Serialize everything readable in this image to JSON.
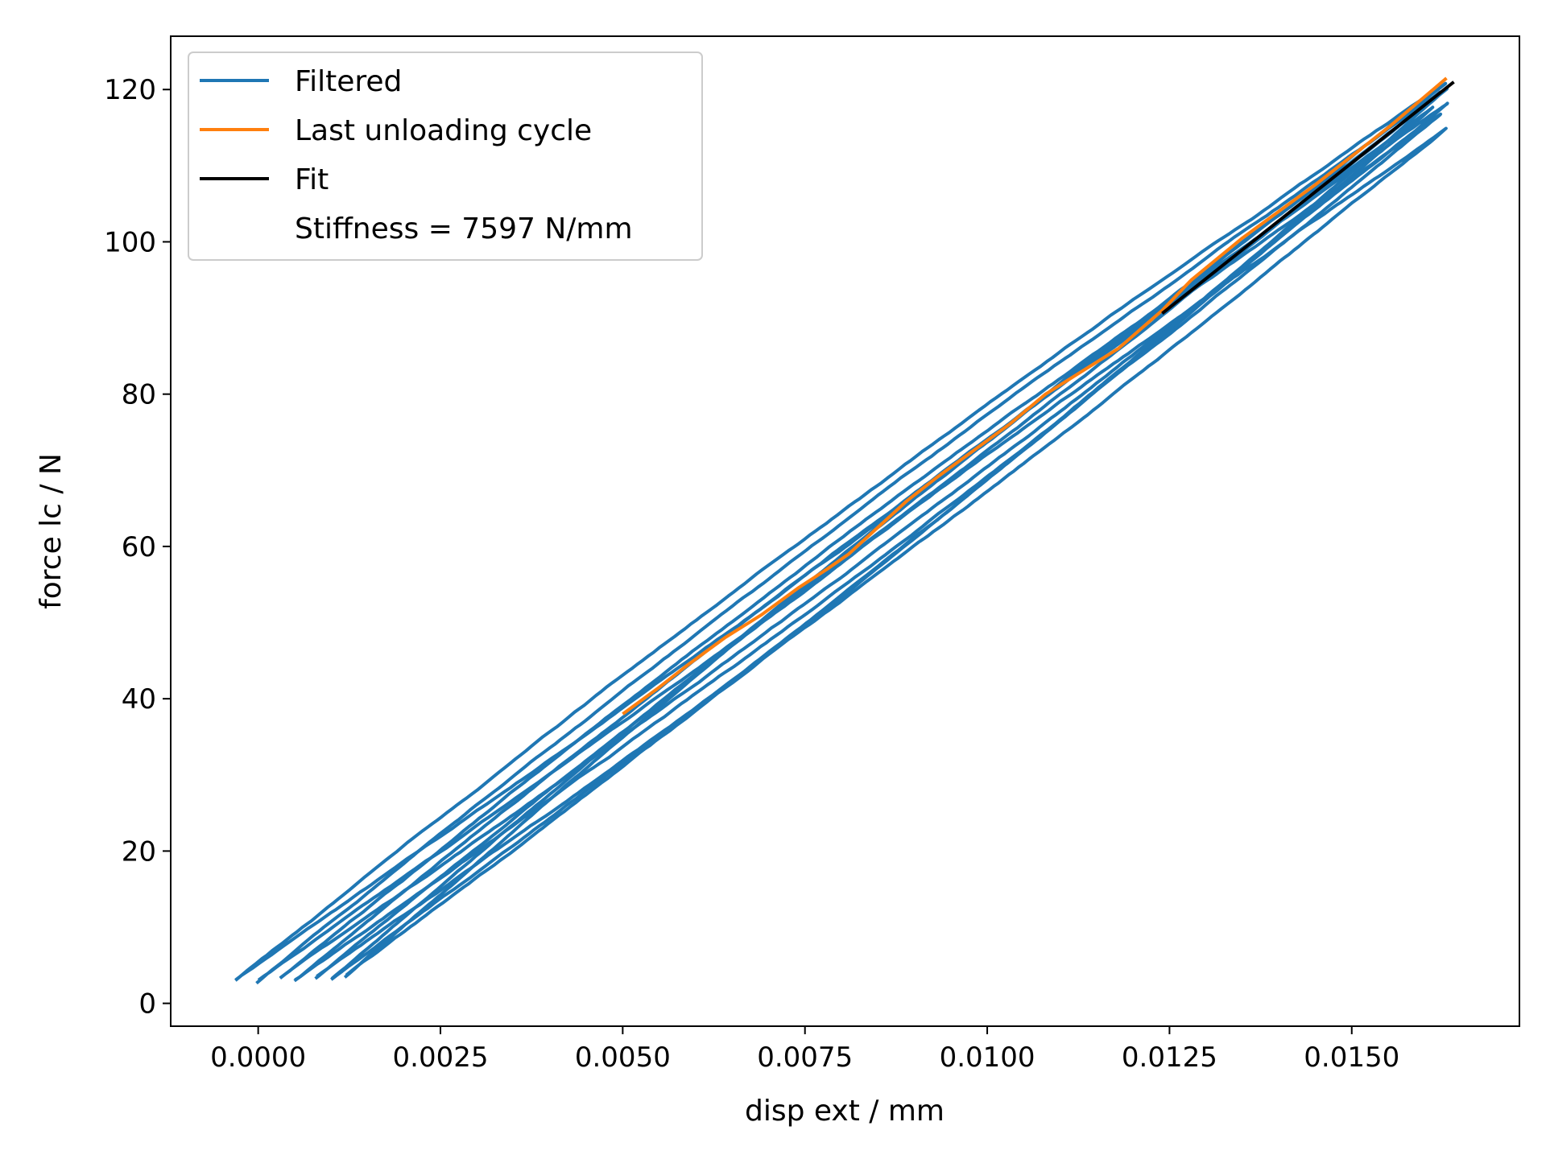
{
  "chart_data": {
    "type": "line",
    "title": "",
    "xlabel": "disp ext / mm",
    "ylabel": "force lc / N",
    "xlim": [
      -0.0012,
      0.0173
    ],
    "ylim": [
      -3,
      127
    ],
    "x_ticks": [
      0.0,
      0.0025,
      0.005,
      0.0075,
      0.01,
      0.0125,
      0.015
    ],
    "x_tick_labels": [
      "0.0000",
      "0.0025",
      "0.0050",
      "0.0075",
      "0.0100",
      "0.0125",
      "0.0150"
    ],
    "y_ticks": [
      0,
      20,
      40,
      60,
      80,
      100,
      120
    ],
    "y_tick_labels": [
      "0",
      "20",
      "40",
      "60",
      "80",
      "100",
      "120"
    ],
    "grid": false,
    "legend_position": "top-left",
    "series": [
      {
        "name": "Filtered",
        "color": "#1f77b4",
        "kind": "cycles",
        "cycles": [
          {
            "min": [
              -0.0003,
              3.2
            ],
            "max": [
              0.0163,
              121.0
            ]
          },
          {
            "min": [
              0.0,
              3.0
            ],
            "max": [
              0.0162,
              119.5
            ]
          },
          {
            "min": [
              0.0003,
              3.3
            ],
            "max": [
              0.0163,
              118.0
            ]
          },
          {
            "min": [
              0.0005,
              3.0
            ],
            "max": [
              0.0162,
              116.5
            ]
          },
          {
            "min": [
              0.0008,
              3.5
            ],
            "max": [
              0.0163,
              115.0
            ]
          },
          {
            "min": [
              0.001,
              3.1
            ],
            "max": [
              0.0161,
              117.5
            ]
          },
          {
            "min": [
              0.0012,
              3.6
            ],
            "max": [
              0.0163,
              120.0
            ]
          }
        ]
      },
      {
        "name": "Last unloading cycle",
        "color": "#ff7f0e",
        "x": [
          0.0163,
          0.0155,
          0.0145,
          0.0135,
          0.0128,
          0.0124,
          0.0121,
          0.0118,
          0.0113,
          0.0108,
          0.0103,
          0.0098,
          0.0093,
          0.0089,
          0.0085,
          0.0081,
          0.0078,
          0.0074,
          0.0069,
          0.0064,
          0.0059,
          0.0055,
          0.005
        ],
        "y": [
          121.5,
          115.0,
          107.5,
          100.5,
          95.0,
          91.0,
          88.5,
          86.0,
          83.0,
          80.0,
          76.0,
          72.5,
          69.0,
          66.0,
          62.5,
          59.0,
          57.0,
          54.5,
          51.0,
          48.0,
          44.5,
          41.5,
          38.0
        ]
      },
      {
        "name": "Fit",
        "color": "#000000",
        "x": [
          0.0124,
          0.0164
        ],
        "y": [
          90.6,
          121.0
        ]
      }
    ],
    "annotation": "Stiffness = 7597 N/mm"
  }
}
